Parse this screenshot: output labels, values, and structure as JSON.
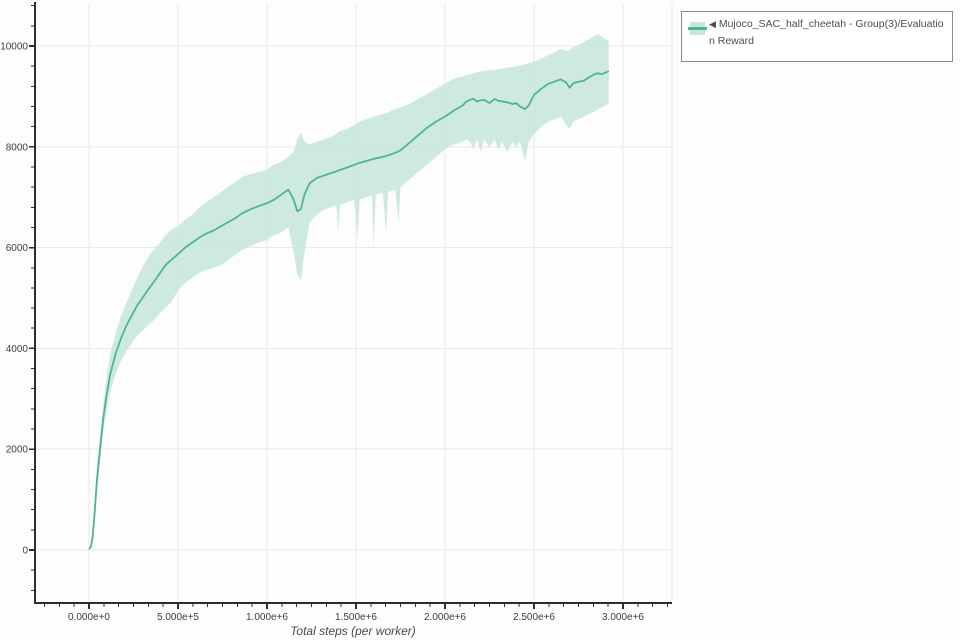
{
  "legend": {
    "marker": "◀",
    "label": "Mujoco_SAC_half_cheetah - Group(3)/Evaluation Reward",
    "swatch_band_color": "#c7e7dc",
    "swatch_line_color": "#4db39c"
  },
  "colors": {
    "line": "#4db39c",
    "band": "#c7e7dc",
    "grid": "#e8e8e8",
    "axis": "#2d2d2d",
    "tick_label": "#3e3e3e",
    "legend_border": "#8b8b8b",
    "background": "#fdfdfd"
  },
  "chart_data": {
    "type": "line",
    "title": "",
    "xlabel": "Total steps (per worker)",
    "ylabel": "",
    "grid": true,
    "legend_position": "outside-top-right",
    "x_ticks": {
      "values": [
        0,
        500000,
        1000000,
        1500000,
        2000000,
        2500000,
        3000000
      ],
      "labels": [
        "0.000e+0",
        "5.000e+5",
        "1.000e+6",
        "1.500e+6",
        "2.000e+6",
        "2.500e+6",
        "3.000e+6"
      ]
    },
    "y_ticks": {
      "values": [
        0,
        2000,
        4000,
        6000,
        8000,
        10000
      ],
      "labels": [
        "0",
        "2000",
        "4000",
        "6000",
        "8000",
        "10000"
      ]
    },
    "x_minor_step": 83333.33,
    "y_minor_step": 400,
    "series": [
      {
        "name": "Mujoco_SAC_half_cheetah - Group(3)/Evaluation Reward",
        "color": "#4db39c",
        "band_color": "#c7e7dc",
        "points_format": [
          "step",
          "mean",
          "band_low",
          "band_high"
        ],
        "points": [
          [
            0,
            20,
            0,
            50
          ],
          [
            10000,
            60,
            30,
            110
          ],
          [
            20000,
            250,
            150,
            380
          ],
          [
            30000,
            650,
            480,
            850
          ],
          [
            45000,
            1400,
            1150,
            1650
          ],
          [
            62000,
            2000,
            1750,
            2250
          ],
          [
            80000,
            2600,
            2350,
            2850
          ],
          [
            100000,
            3100,
            2800,
            3450
          ],
          [
            120000,
            3500,
            3150,
            3900
          ],
          [
            150000,
            3900,
            3500,
            4300
          ],
          [
            180000,
            4200,
            3750,
            4650
          ],
          [
            210000,
            4450,
            3950,
            4900
          ],
          [
            240000,
            4650,
            4100,
            5150
          ],
          [
            270000,
            4850,
            4250,
            5400
          ],
          [
            300000,
            5000,
            4350,
            5600
          ],
          [
            330000,
            5150,
            4450,
            5800
          ],
          [
            360000,
            5300,
            4550,
            5950
          ],
          [
            400000,
            5500,
            4700,
            6100
          ],
          [
            430000,
            5650,
            4820,
            6250
          ],
          [
            460000,
            5750,
            4900,
            6350
          ],
          [
            500000,
            5870,
            5150,
            6420
          ],
          [
            540000,
            6000,
            5300,
            6550
          ],
          [
            580000,
            6100,
            5400,
            6650
          ],
          [
            620000,
            6200,
            5500,
            6800
          ],
          [
            660000,
            6280,
            5550,
            6900
          ],
          [
            700000,
            6340,
            5600,
            7000
          ],
          [
            740000,
            6420,
            5650,
            7100
          ],
          [
            780000,
            6500,
            5750,
            7200
          ],
          [
            820000,
            6580,
            5850,
            7300
          ],
          [
            860000,
            6680,
            5950,
            7400
          ],
          [
            900000,
            6750,
            6020,
            7450
          ],
          [
            950000,
            6820,
            6100,
            7500
          ],
          [
            1000000,
            6880,
            6150,
            7550
          ],
          [
            1040000,
            6950,
            6250,
            7650
          ],
          [
            1080000,
            7050,
            6300,
            7700
          ],
          [
            1120000,
            7150,
            6400,
            7800
          ],
          [
            1150000,
            6950,
            5900,
            7900
          ],
          [
            1170000,
            6720,
            5450,
            8150
          ],
          [
            1190000,
            6760,
            5350,
            8280
          ],
          [
            1210000,
            7050,
            5900,
            8100
          ],
          [
            1240000,
            7280,
            6500,
            8050
          ],
          [
            1280000,
            7380,
            6650,
            8100
          ],
          [
            1320000,
            7430,
            6750,
            8150
          ],
          [
            1360000,
            7480,
            6800,
            8200
          ],
          [
            1390000,
            7510,
            6850,
            8260
          ],
          [
            1400000,
            7530,
            6300,
            8300
          ],
          [
            1410000,
            7540,
            6850,
            8310
          ],
          [
            1450000,
            7590,
            6900,
            8360
          ],
          [
            1490000,
            7640,
            6950,
            8430
          ],
          [
            1510000,
            7670,
            6200,
            8470
          ],
          [
            1520000,
            7680,
            6950,
            8500
          ],
          [
            1560000,
            7720,
            7000,
            8550
          ],
          [
            1590000,
            7750,
            7050,
            8590
          ],
          [
            1600000,
            7760,
            6000,
            8600
          ],
          [
            1610000,
            7770,
            7050,
            8610
          ],
          [
            1650000,
            7800,
            7100,
            8650
          ],
          [
            1670000,
            7820,
            6300,
            8670
          ],
          [
            1680000,
            7830,
            7100,
            8680
          ],
          [
            1720000,
            7880,
            7150,
            8750
          ],
          [
            1740000,
            7910,
            6500,
            8770
          ],
          [
            1750000,
            7930,
            7200,
            8780
          ],
          [
            1800000,
            8080,
            7350,
            8850
          ],
          [
            1850000,
            8230,
            7500,
            8950
          ],
          [
            1900000,
            8380,
            7650,
            9050
          ],
          [
            1950000,
            8500,
            7800,
            9150
          ],
          [
            2000000,
            8600,
            7950,
            9250
          ],
          [
            2050000,
            8720,
            8050,
            9350
          ],
          [
            2100000,
            8820,
            8100,
            9400
          ],
          [
            2120000,
            8900,
            8150,
            9420
          ],
          [
            2140000,
            8930,
            8100,
            9440
          ],
          [
            2160000,
            8950,
            7950,
            9460
          ],
          [
            2180000,
            8900,
            8150,
            9480
          ],
          [
            2200000,
            8920,
            7900,
            9500
          ],
          [
            2220000,
            8930,
            8150,
            9510
          ],
          [
            2250000,
            8870,
            8000,
            9520
          ],
          [
            2280000,
            8950,
            8150,
            9530
          ],
          [
            2300000,
            8910,
            7950,
            9540
          ],
          [
            2320000,
            8900,
            8100,
            9550
          ],
          [
            2350000,
            8880,
            7900,
            9570
          ],
          [
            2380000,
            8850,
            8100,
            9590
          ],
          [
            2400000,
            8870,
            8000,
            9600
          ],
          [
            2420000,
            8800,
            8100,
            9610
          ],
          [
            2450000,
            8750,
            7700,
            9640
          ],
          [
            2470000,
            8820,
            8100,
            9660
          ],
          [
            2500000,
            9030,
            8250,
            9690
          ],
          [
            2540000,
            9150,
            8400,
            9750
          ],
          [
            2580000,
            9250,
            8500,
            9820
          ],
          [
            2620000,
            9300,
            8550,
            9880
          ],
          [
            2650000,
            9340,
            8600,
            9940
          ],
          [
            2680000,
            9280,
            8450,
            9900
          ],
          [
            2700000,
            9170,
            8350,
            9920
          ],
          [
            2720000,
            9260,
            8500,
            9980
          ],
          [
            2750000,
            9290,
            8550,
            10020
          ],
          [
            2780000,
            9310,
            8600,
            10080
          ],
          [
            2810000,
            9380,
            8650,
            10140
          ],
          [
            2840000,
            9440,
            8700,
            10200
          ],
          [
            2860000,
            9460,
            8750,
            10240
          ],
          [
            2880000,
            9440,
            8780,
            10190
          ],
          [
            2900000,
            9470,
            8820,
            10140
          ],
          [
            2920000,
            9500,
            8860,
            10100
          ]
        ]
      }
    ]
  }
}
